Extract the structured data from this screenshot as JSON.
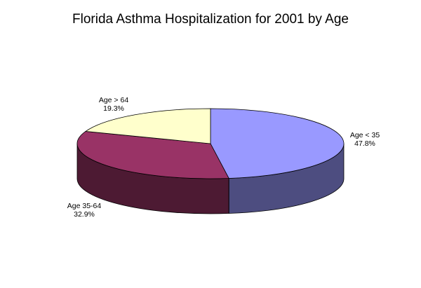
{
  "chart_data": {
    "type": "pie",
    "title": "Florida Asthma Hospitalization for 2001 by Age",
    "slices": [
      {
        "label": "Age < 35",
        "percent_label": "47.8%",
        "value": 47.8,
        "top_color": "#9999ff",
        "side_color": "#4d4d80"
      },
      {
        "label": "Age 35-64",
        "percent_label": "32.9%",
        "value": 32.9,
        "top_color": "#993366",
        "side_color": "#4d1a33"
      },
      {
        "label": "Age > 64",
        "percent_label": "19.3%",
        "value": 19.3,
        "top_color": "#ffffcc",
        "side_color": "#80806a"
      }
    ],
    "legend": "none",
    "style": "3d"
  }
}
